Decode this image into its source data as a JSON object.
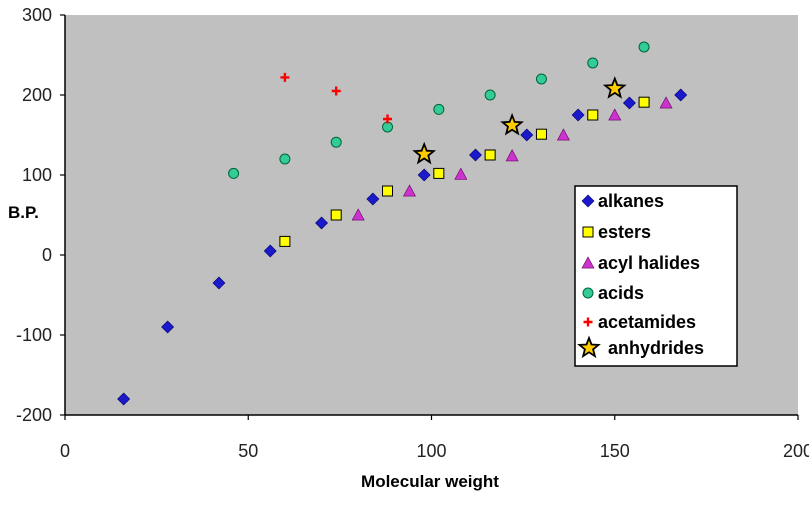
{
  "chart_data": {
    "type": "scatter",
    "title": "",
    "xlabel": "Molecular weight",
    "ylabel": "B.P.",
    "xlim": [
      0,
      200
    ],
    "ylim": [
      -200,
      300
    ],
    "xticks": [
      0,
      50,
      100,
      150,
      200
    ],
    "yticks": [
      -200,
      -100,
      0,
      100,
      200,
      300
    ],
    "xtick_labels": [
      "0",
      "50",
      "100",
      "150",
      "200"
    ],
    "ytick_labels": [
      "-200",
      "-100",
      "0",
      "100",
      "200",
      "300"
    ],
    "grid": false,
    "legend_position": "center-right",
    "colors": {
      "plot_bg": "#c0c0c0",
      "alkanes": "#1a1acc",
      "esters": "#ffff00",
      "acyl_halides": "#cc33cc",
      "acids": "#33cc99",
      "acetamides": "#ff0000",
      "anhydrides": "#ffcc00"
    },
    "series": [
      {
        "name": "alkanes",
        "marker": "diamond",
        "points": [
          [
            16,
            -180
          ],
          [
            28,
            -90
          ],
          [
            42,
            -35
          ],
          [
            56,
            5
          ],
          [
            70,
            40
          ],
          [
            84,
            70
          ],
          [
            98,
            100
          ],
          [
            112,
            125
          ],
          [
            126,
            150
          ],
          [
            140,
            175
          ],
          [
            154,
            190
          ],
          [
            168,
            200
          ]
        ]
      },
      {
        "name": "esters",
        "marker": "square",
        "points": [
          [
            60,
            17
          ],
          [
            74,
            50
          ],
          [
            88,
            80
          ],
          [
            102,
            102
          ],
          [
            116,
            125
          ],
          [
            130,
            151
          ],
          [
            144,
            175
          ],
          [
            158,
            191
          ]
        ]
      },
      {
        "name": "acyl halides",
        "marker": "triangle",
        "points": [
          [
            80,
            50
          ],
          [
            94,
            80
          ],
          [
            108,
            101
          ],
          [
            122,
            124
          ],
          [
            136,
            150
          ],
          [
            150,
            175
          ],
          [
            164,
            190
          ]
        ]
      },
      {
        "name": "acids",
        "marker": "circle",
        "points": [
          [
            46,
            102
          ],
          [
            60,
            120
          ],
          [
            74,
            141
          ],
          [
            88,
            160
          ],
          [
            102,
            182
          ],
          [
            116,
            200
          ],
          [
            130,
            220
          ],
          [
            144,
            240
          ],
          [
            158,
            260
          ]
        ]
      },
      {
        "name": "acetamides",
        "marker": "plus",
        "points": [
          [
            60,
            222
          ],
          [
            74,
            205
          ],
          [
            88,
            170
          ]
        ]
      },
      {
        "name": "anhydrides",
        "marker": "star",
        "points": [
          [
            98,
            126
          ],
          [
            122,
            162
          ],
          [
            150,
            208
          ]
        ]
      }
    ]
  }
}
